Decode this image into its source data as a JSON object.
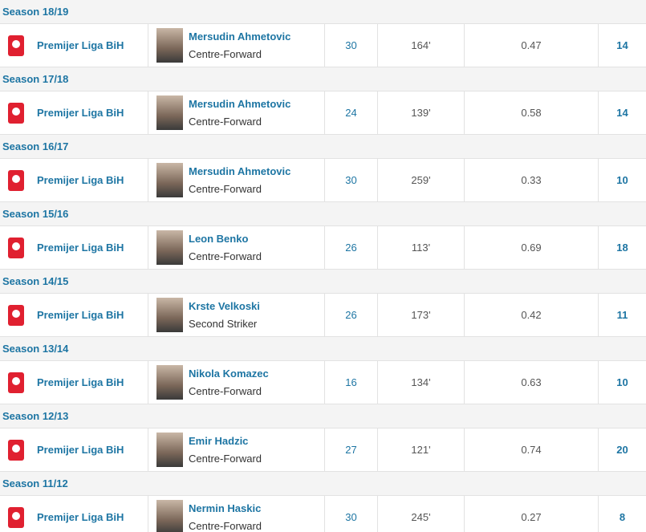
{
  "rows": [
    {
      "season": "Season 18/19",
      "league": "Premijer Liga BiH",
      "player": "Mersudin Ahmetovic",
      "position": "Centre-Forward",
      "apps": 30,
      "minutes_per_goal": "164'",
      "goals_per_game": 0.47,
      "goals": 14
    },
    {
      "season": "Season 17/18",
      "league": "Premijer Liga BiH",
      "player": "Mersudin Ahmetovic",
      "position": "Centre-Forward",
      "apps": 24,
      "minutes_per_goal": "139'",
      "goals_per_game": 0.58,
      "goals": 14
    },
    {
      "season": "Season 16/17",
      "league": "Premijer Liga BiH",
      "player": "Mersudin Ahmetovic",
      "position": "Centre-Forward",
      "apps": 30,
      "minutes_per_goal": "259'",
      "goals_per_game": 0.33,
      "goals": 10
    },
    {
      "season": "Season 15/16",
      "league": "Premijer Liga BiH",
      "player": "Leon Benko",
      "position": "Centre-Forward",
      "apps": 26,
      "minutes_per_goal": "113'",
      "goals_per_game": 0.69,
      "goals": 18
    },
    {
      "season": "Season 14/15",
      "league": "Premijer Liga BiH",
      "player": "Krste Velkoski",
      "position": "Second Striker",
      "apps": 26,
      "minutes_per_goal": "173'",
      "goals_per_game": 0.42,
      "goals": 11
    },
    {
      "season": "Season 13/14",
      "league": "Premijer Liga BiH",
      "player": "Nikola Komazec",
      "position": "Centre-Forward",
      "apps": 16,
      "minutes_per_goal": "134'",
      "goals_per_game": 0.63,
      "goals": 10
    },
    {
      "season": "Season 12/13",
      "league": "Premijer Liga BiH",
      "player": "Emir Hadzic",
      "position": "Centre-Forward",
      "apps": 27,
      "minutes_per_goal": "121'",
      "goals_per_game": 0.74,
      "goals": 20
    },
    {
      "season": "Season 11/12",
      "league": "Premijer Liga BiH",
      "player": "Nermin Haskic",
      "position": "Centre-Forward",
      "apps": 30,
      "minutes_per_goal": "245'",
      "goals_per_game": 0.27,
      "goals": 8
    }
  ]
}
